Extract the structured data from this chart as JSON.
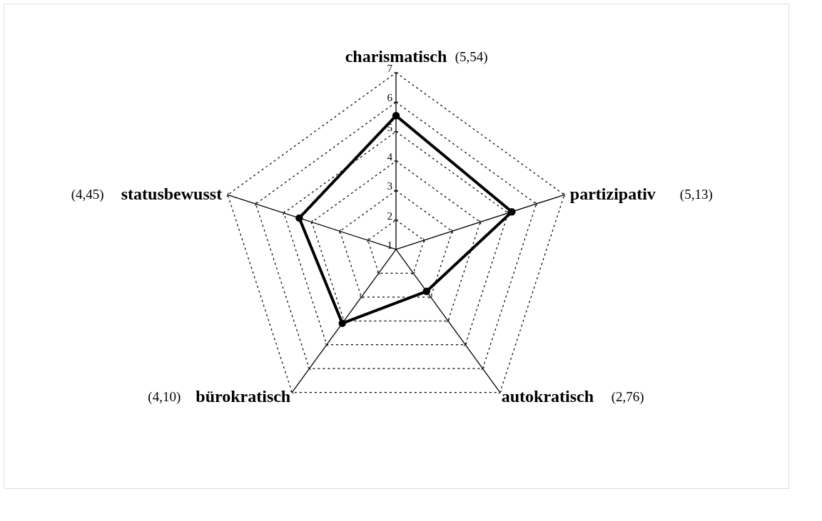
{
  "chart_data": {
    "type": "radar",
    "categories": [
      "charismatisch",
      "partizipativ",
      "autokratisch",
      "bürokratisch",
      "statusbewusst"
    ],
    "series": [
      {
        "color": "#000000",
        "values": [
          5.54,
          5.13,
          2.76,
          4.1,
          4.45
        ]
      }
    ],
    "annotations": [
      "(5,54)",
      "(5,13)",
      "(2,76)",
      "(4,10)",
      "(4,45)"
    ],
    "ylim": [
      1,
      7
    ],
    "yticks": [
      1,
      2,
      3,
      4,
      5,
      6,
      7
    ],
    "grid": true,
    "marker": "circle",
    "line_style": "solid"
  }
}
